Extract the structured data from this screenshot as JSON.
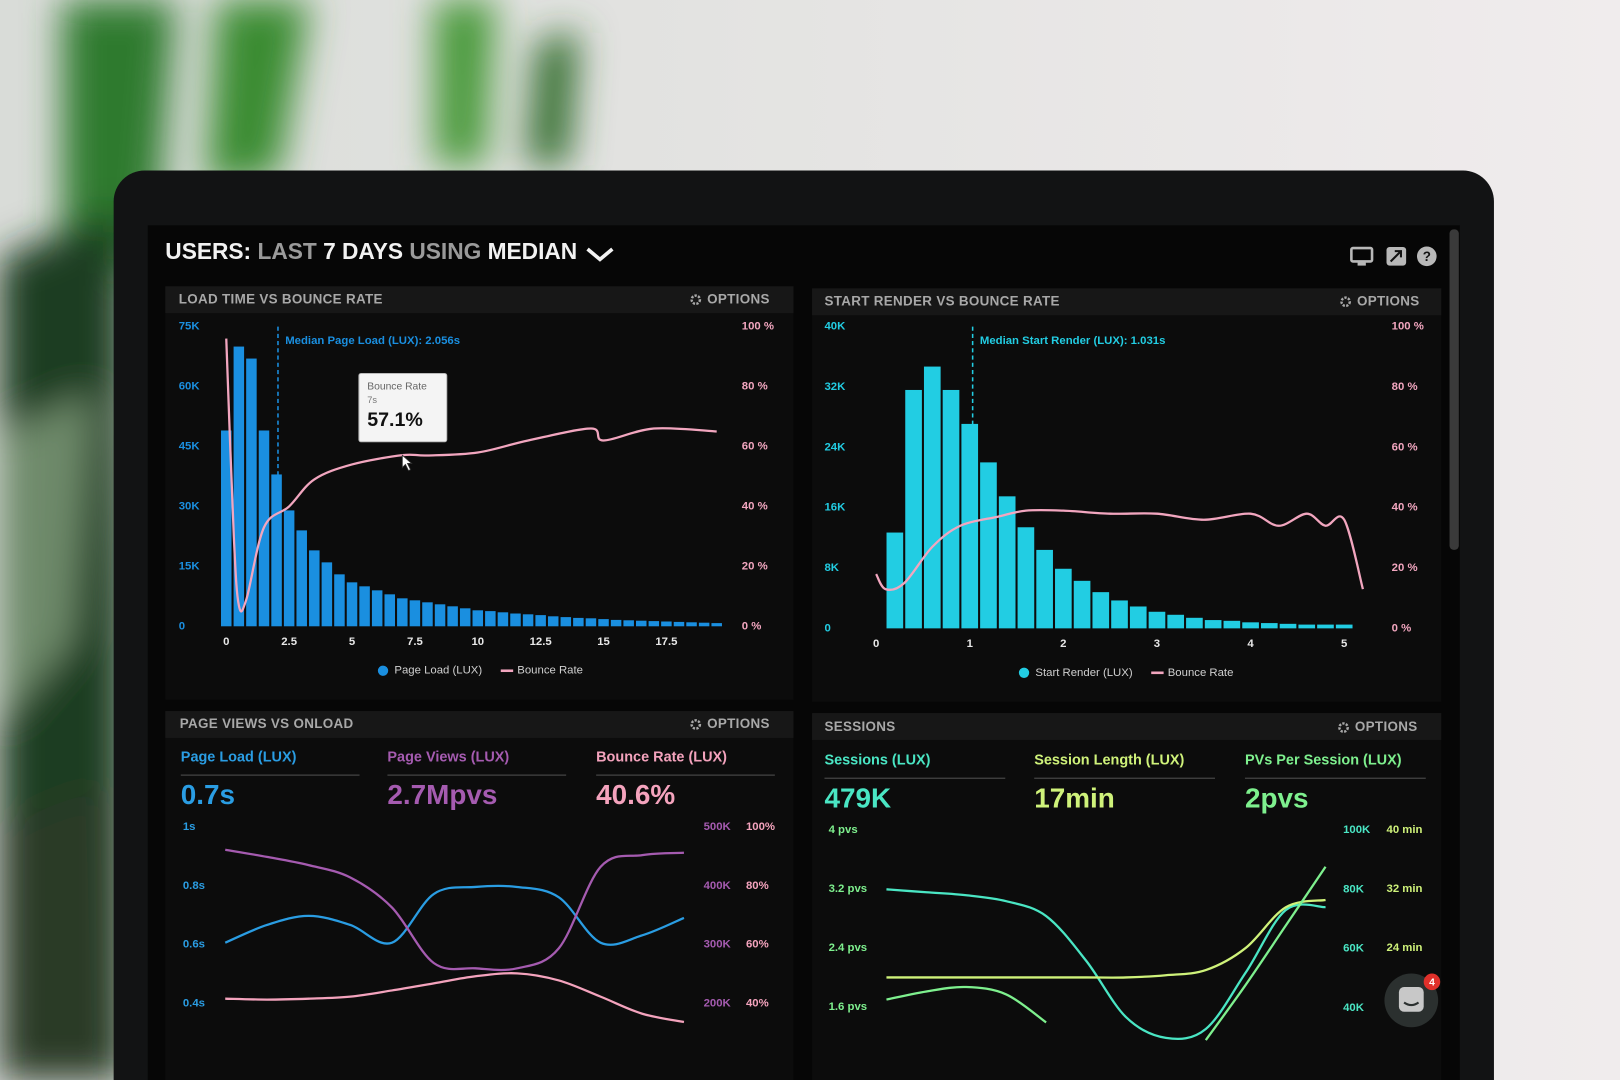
{
  "header": {
    "title": [
      "USERS:",
      "LAST",
      "7 DAYS",
      "USING",
      "MEDIAN"
    ]
  },
  "options_label": "OPTIONS",
  "notifications": 4,
  "chart_data": [
    {
      "type": "histogram",
      "title": "LOAD TIME VS BOUNCE RATE",
      "legend": "bottom",
      "grid": false,
      "xlim": [
        -0.3,
        19.8
      ],
      "xticks": [
        0,
        2.5,
        5,
        7.5,
        10,
        12.5,
        15,
        17.5
      ],
      "ylim": [
        0,
        75000
      ],
      "yticks": [
        0,
        {
          "value": 15000,
          "label": "15K"
        },
        {
          "value": 30000,
          "label": "30K"
        },
        {
          "value": 45000,
          "label": "45K"
        },
        {
          "value": 60000,
          "label": "60K"
        },
        {
          "value": 75000,
          "label": "75K"
        }
      ],
      "y2lim": [
        0,
        100
      ],
      "y2ticks": [
        {
          "value": 0,
          "label": "0 %"
        },
        {
          "value": 20,
          "label": "20 %"
        },
        {
          "value": 40,
          "label": "40 %"
        },
        {
          "value": 60,
          "label": "60 %"
        },
        {
          "value": 80,
          "label": "80 %"
        },
        {
          "value": 100,
          "label": "100 %"
        }
      ],
      "median": {
        "value": 2.056,
        "label": "Median Page Load (LUX): 2.056s"
      },
      "tooltip": {
        "title": "Bounce Rate",
        "x": 7,
        "x_label": "7s",
        "value": 57.1,
        "value_label": "57.1%",
        "axis": "y2"
      },
      "series": [
        {
          "name": "Page Load (LUX)",
          "type": "bar",
          "color": "#1a8fe0",
          "bins": [
            -0.25,
            0.25,
            0.75,
            1.25,
            1.75,
            2.25,
            2.75,
            3.25,
            3.75,
            4.25,
            4.75,
            5.25,
            5.75,
            6.25,
            6.75,
            7.25,
            7.75,
            8.25,
            8.75,
            9.25,
            9.75,
            10.25,
            10.75,
            11.25,
            11.75,
            12.25,
            12.75,
            13.25,
            13.75,
            14.25,
            14.75,
            15.25,
            15.75,
            16.25,
            16.75,
            17.25,
            17.75,
            18.25,
            18.75,
            19.25,
            19.75
          ],
          "values": [
            49000,
            70000,
            67000,
            49000,
            38000,
            29000,
            24000,
            19000,
            16000,
            13000,
            11000,
            10000,
            9000,
            8000,
            7000,
            6500,
            6000,
            5500,
            5000,
            4500,
            4000,
            3800,
            3500,
            3200,
            3000,
            2800,
            2500,
            2300,
            2100,
            2000,
            1800,
            1600,
            1500,
            1400,
            1300,
            1200,
            1100,
            1000,
            900,
            800
          ]
        },
        {
          "name": "Bounce Rate",
          "type": "line",
          "axis": "y2",
          "color": "#f2a6bf",
          "x": [
            0,
            0.3,
            0.5,
            0.8,
            1.5,
            2.5,
            3.5,
            5,
            7,
            8,
            10,
            12,
            14.5,
            15,
            17,
            19.5
          ],
          "values": [
            96,
            30,
            7,
            9,
            33,
            40,
            49,
            54,
            57.1,
            57,
            58,
            62,
            66,
            62,
            66,
            65
          ]
        }
      ]
    },
    {
      "type": "histogram",
      "title": "START RENDER VS BOUNCE RATE",
      "legend": "bottom",
      "grid": false,
      "xlim": [
        0,
        5.25
      ],
      "xticks": [
        0,
        1,
        2,
        3,
        4,
        5
      ],
      "ylim": [
        0,
        40000
      ],
      "yticks": [
        0,
        {
          "value": 8000,
          "label": "8K"
        },
        {
          "value": 16000,
          "label": "16K"
        },
        {
          "value": 24000,
          "label": "24K"
        },
        {
          "value": 32000,
          "label": "32K"
        },
        {
          "value": 40000,
          "label": "40K"
        }
      ],
      "y2lim": [
        0,
        100
      ],
      "y2ticks": [
        {
          "value": 0,
          "label": "0 %"
        },
        {
          "value": 20,
          "label": "20 %"
        },
        {
          "value": 40,
          "label": "40 %"
        },
        {
          "value": 60,
          "label": "60 %"
        },
        {
          "value": 80,
          "label": "80 %"
        },
        {
          "value": 100,
          "label": "100 %"
        }
      ],
      "median": {
        "value": 1.031,
        "label": "Median Start Render (LUX): 1.031s"
      },
      "series": [
        {
          "name": "Start Render (LUX)",
          "type": "bar",
          "color": "#22cde3",
          "bins": [
            0.1,
            0.3,
            0.5,
            0.7,
            0.9,
            1.1,
            1.3,
            1.5,
            1.7,
            1.9,
            2.1,
            2.3,
            2.5,
            2.7,
            2.9,
            3.1,
            3.3,
            3.5,
            3.7,
            3.9,
            4.1,
            4.3,
            4.5,
            4.7,
            4.9,
            5.1
          ],
          "values": [
            12700,
            31600,
            34700,
            31600,
            27100,
            22000,
            17500,
            13400,
            10400,
            7900,
            6300,
            4800,
            3700,
            2900,
            2200,
            1800,
            1400,
            1100,
            1000,
            800,
            700,
            600,
            500,
            500,
            500
          ]
        },
        {
          "name": "Bounce Rate",
          "type": "line",
          "axis": "y2",
          "color": "#f2a6bf",
          "x": [
            0,
            0.1,
            0.3,
            0.6,
            0.9,
            1.3,
            1.6,
            2,
            2.5,
            3,
            3.5,
            4,
            4.3,
            4.6,
            4.8,
            5,
            5.2
          ],
          "values": [
            18,
            13,
            15,
            27,
            34,
            37,
            39,
            39,
            38,
            38,
            36,
            38,
            34,
            38,
            34,
            36,
            13
          ]
        }
      ]
    },
    {
      "type": "line",
      "title": "PAGE VIEWS VS ONLOAD",
      "grid": false,
      "categories": [
        null,
        null,
        null,
        null,
        null,
        null,
        null,
        null,
        null,
        null,
        null,
        null
      ],
      "ylim": [
        0.32,
        1
      ],
      "yticks": [
        {
          "value": 1,
          "label": "1s"
        },
        {
          "value": 0.8,
          "label": "0.8s"
        },
        {
          "value": 0.6,
          "label": "0.6s"
        },
        {
          "value": 0.4,
          "label": "0.4s"
        }
      ],
      "y2lim": [
        160000,
        500000
      ],
      "y2ticks": [
        {
          "value": 500000,
          "label": "500K"
        },
        {
          "value": 400000,
          "label": "400K"
        },
        {
          "value": 300000,
          "label": "300K"
        },
        {
          "value": 200000,
          "label": "200K"
        }
      ],
      "y3lim": [
        32,
        100
      ],
      "y3ticks": [
        {
          "value": 100,
          "label": "100%"
        },
        {
          "value": 80,
          "label": "80%"
        },
        {
          "value": 60,
          "label": "60%"
        },
        {
          "value": 40,
          "label": "40%"
        }
      ],
      "series": [
        {
          "name": "Page Load (LUX)",
          "summary": "0.7s",
          "color": "#2a9de3",
          "values": [
            0.607,
            0.667,
            0.698,
            0.667,
            0.607,
            0.772,
            0.796,
            0.796,
            0.761,
            0.607,
            0.632,
            0.691
          ]
        },
        {
          "name": "Page Views (LUX)",
          "summary": "2.7Mpvs",
          "axis": "y2",
          "color": "#a55bb0",
          "values": [
            461000,
            449000,
            435000,
            414000,
            363000,
            269000,
            260000,
            260000,
            294000,
            432000,
            452000,
            456000
          ]
        },
        {
          "name": "Bounce Rate (LUX)",
          "summary": "40.6%",
          "axis": "y3",
          "color": "#f4a3bd",
          "values": [
            41.7,
            41.4,
            41.7,
            42.4,
            44.5,
            46.9,
            49.3,
            50.3,
            47.9,
            42.4,
            36.6,
            33.8
          ]
        }
      ]
    },
    {
      "type": "line",
      "title": "SESSIONS",
      "grid": false,
      "categories": [
        null,
        null,
        null,
        null,
        null,
        null,
        null,
        null,
        null,
        null,
        null,
        null
      ],
      "ylim": [
        1.1,
        4
      ],
      "yticks": [
        {
          "value": 4,
          "label": "4 pvs"
        },
        {
          "value": 3.2,
          "label": "3.2 pvs"
        },
        {
          "value": 2.4,
          "label": "2.4 pvs"
        },
        {
          "value": 1.6,
          "label": "1.6 pvs"
        }
      ],
      "y2lim": [
        28000,
        100000
      ],
      "y2ticks": [
        {
          "value": 100000,
          "label": "100K"
        },
        {
          "value": 80000,
          "label": "80K"
        },
        {
          "value": 60000,
          "label": "60K"
        },
        {
          "value": 40000,
          "label": "40K"
        }
      ],
      "y3lim": [
        11,
        40
      ],
      "y3ticks": [
        {
          "value": 40,
          "label": "40 min"
        },
        {
          "value": 32,
          "label": "32 min"
        },
        {
          "value": 24,
          "label": "24 min"
        }
      ],
      "series": [
        {
          "name": "Sessions (LUX)",
          "summary": "479K",
          "axis": "y2",
          "color": "#4ae6c4",
          "values": [
            80000,
            79000,
            78000,
            76000,
            71000,
            56000,
            37000,
            30000,
            33000,
            52000,
            73000,
            74000
          ]
        },
        {
          "name": "Session Length (LUX)",
          "summary": "17min",
          "axis": "y3",
          "color": "#cff27a",
          "values": [
            20,
            20,
            20,
            20,
            20,
            20,
            20,
            20.3,
            21,
            24,
            29.5,
            30.5
          ]
        },
        {
          "name": "PVs Per Session (LUX)",
          "summary": "2pvs",
          "color": "#7ef08e",
          "values": [
            1.7,
            1.81,
            1.87,
            1.77,
            1.39,
            null,
            null,
            null,
            1.15,
            1.9,
            2.7,
            3.5
          ]
        }
      ]
    }
  ]
}
